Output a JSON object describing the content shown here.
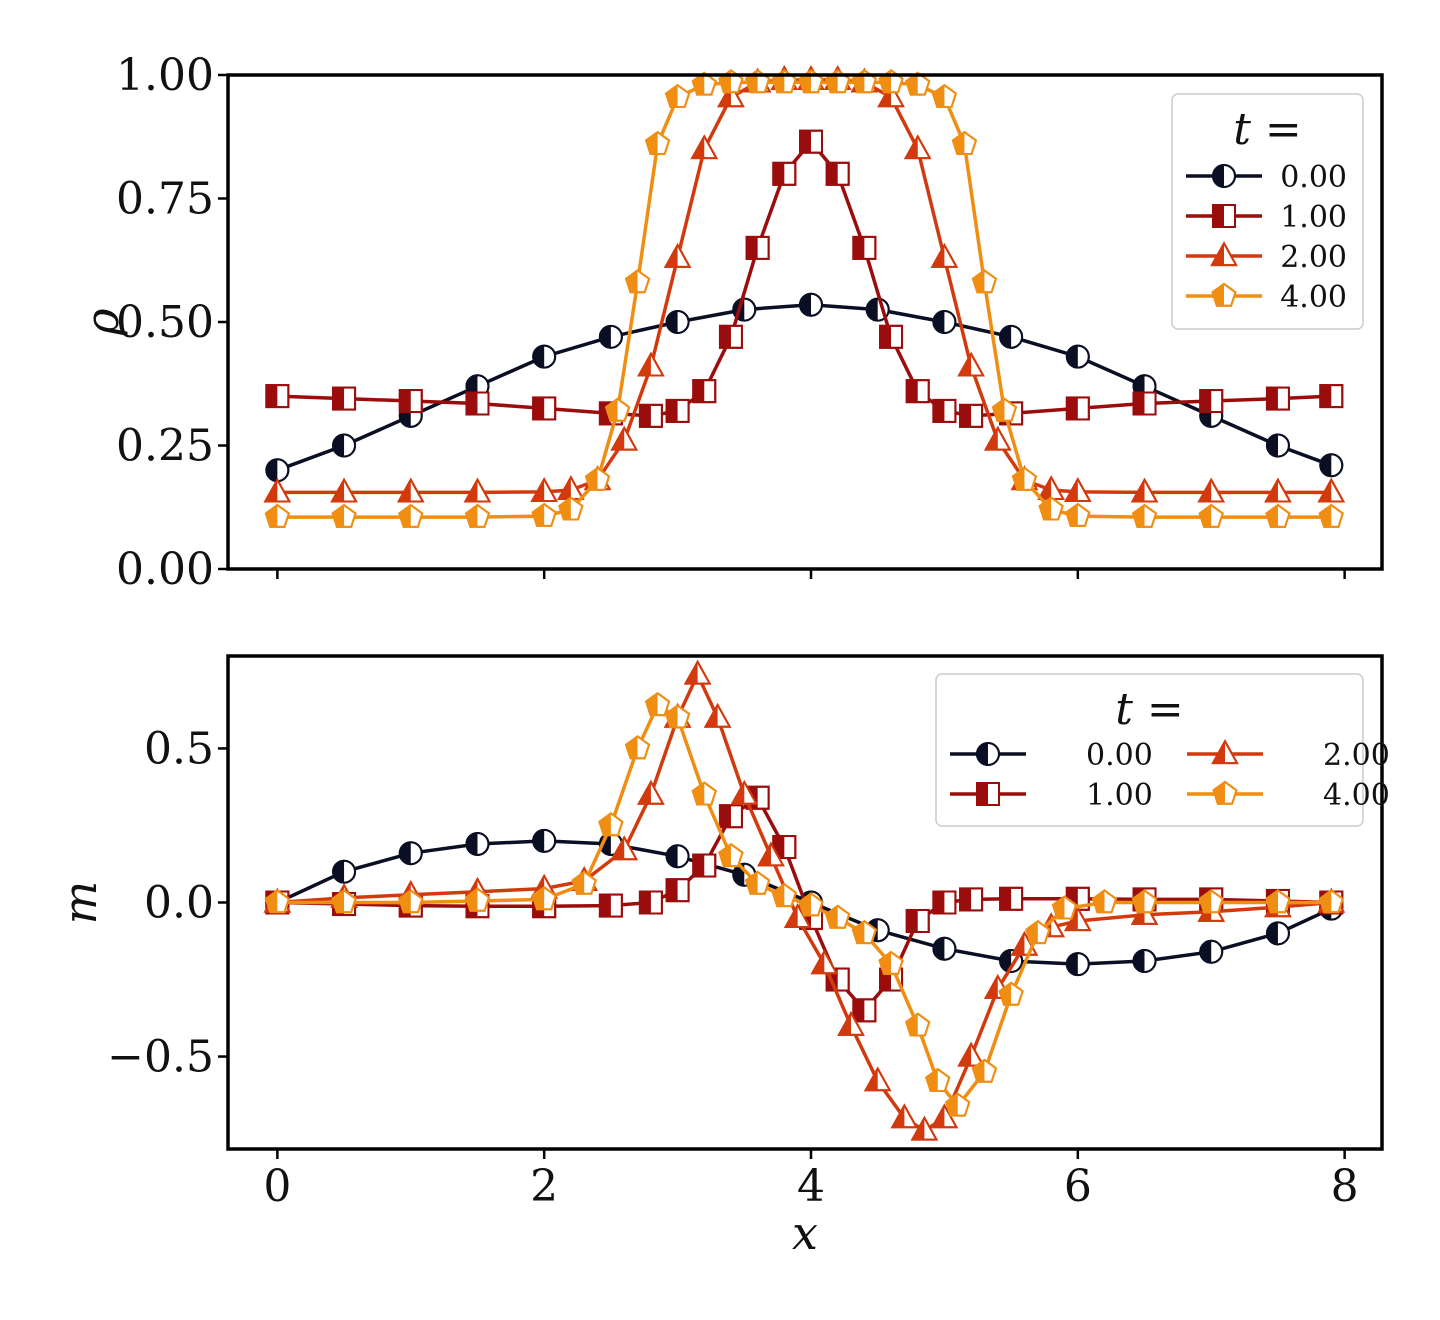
{
  "chart_data": [
    {
      "type": "line",
      "panel": "top",
      "title": "",
      "xlabel": "",
      "ylabel": "ρ",
      "xlim": [
        -0.37,
        8.28
      ],
      "ylim": [
        0.0,
        1.0
      ],
      "x_ticks": [
        "0",
        "2",
        "4",
        "6",
        "8"
      ],
      "y_ticks": [
        "0.00",
        "0.25",
        "0.50",
        "0.75",
        "1.00"
      ],
      "y_tick_values": [
        0.0,
        0.25,
        0.5,
        0.75,
        1.0
      ],
      "show_x_tick_labels": false,
      "legend": {
        "title": "t =",
        "placement": "top-right",
        "columns": 1
      },
      "series": [
        {
          "name": "0.00",
          "color": "#0b0f24",
          "marker": "circle-half",
          "x": [
            0,
            0.5,
            1,
            1.5,
            2,
            2.5,
            3,
            3.5,
            4,
            4.5,
            5,
            5.5,
            6,
            6.5,
            7,
            7.5,
            7.9
          ],
          "y": [
            0.2,
            0.25,
            0.31,
            0.37,
            0.43,
            0.47,
            0.5,
            0.525,
            0.535,
            0.525,
            0.5,
            0.47,
            0.43,
            0.37,
            0.31,
            0.25,
            0.21
          ]
        },
        {
          "name": "1.00",
          "color": "#9b0d0d",
          "marker": "square-half",
          "x": [
            0,
            0.5,
            1,
            1.5,
            2,
            2.5,
            2.8,
            3.0,
            3.2,
            3.4,
            3.6,
            3.8,
            4.0,
            4.2,
            4.4,
            4.6,
            4.8,
            5.0,
            5.2,
            5.5,
            6,
            6.5,
            7,
            7.5,
            7.9
          ],
          "y": [
            0.35,
            0.345,
            0.34,
            0.335,
            0.325,
            0.315,
            0.31,
            0.32,
            0.36,
            0.47,
            0.65,
            0.8,
            0.865,
            0.8,
            0.65,
            0.47,
            0.36,
            0.32,
            0.31,
            0.315,
            0.325,
            0.335,
            0.34,
            0.345,
            0.35
          ]
        },
        {
          "name": "2.00",
          "color": "#d23a0e",
          "marker": "triangle-half",
          "x": [
            0,
            0.5,
            1,
            1.5,
            2,
            2.2,
            2.4,
            2.6,
            2.8,
            3.0,
            3.2,
            3.4,
            3.6,
            3.8,
            4.0,
            4.2,
            4.4,
            4.6,
            4.8,
            5.0,
            5.2,
            5.4,
            5.6,
            5.8,
            6,
            6.5,
            7,
            7.5,
            7.9
          ],
          "y": [
            0.155,
            0.155,
            0.155,
            0.155,
            0.156,
            0.16,
            0.18,
            0.26,
            0.41,
            0.63,
            0.85,
            0.955,
            0.985,
            0.99,
            0.99,
            0.99,
            0.985,
            0.955,
            0.85,
            0.63,
            0.41,
            0.26,
            0.18,
            0.16,
            0.156,
            0.155,
            0.155,
            0.155,
            0.155
          ]
        },
        {
          "name": "4.00",
          "color": "#ef8e12",
          "marker": "pentagon-half",
          "x": [
            0,
            0.5,
            1,
            1.5,
            2,
            2.2,
            2.4,
            2.55,
            2.7,
            2.85,
            3.0,
            3.2,
            3.4,
            3.6,
            3.8,
            4.0,
            4.2,
            4.4,
            4.6,
            4.8,
            5.0,
            5.15,
            5.3,
            5.45,
            5.6,
            5.8,
            6,
            6.5,
            7,
            7.5,
            7.9
          ],
          "y": [
            0.105,
            0.105,
            0.105,
            0.105,
            0.107,
            0.12,
            0.18,
            0.32,
            0.58,
            0.86,
            0.955,
            0.98,
            0.985,
            0.985,
            0.985,
            0.985,
            0.985,
            0.985,
            0.985,
            0.98,
            0.955,
            0.86,
            0.58,
            0.32,
            0.18,
            0.12,
            0.107,
            0.105,
            0.105,
            0.105,
            0.105
          ]
        }
      ]
    },
    {
      "type": "line",
      "panel": "bottom",
      "title": "",
      "xlabel": "x",
      "ylabel": "m",
      "xlim": [
        -0.37,
        8.28
      ],
      "ylim": [
        -0.8,
        0.8
      ],
      "x_ticks": [
        "0",
        "2",
        "4",
        "6",
        "8"
      ],
      "x_tick_values": [
        0,
        2,
        4,
        6,
        8
      ],
      "y_ticks": [
        "−0.5",
        "0.0",
        "0.5"
      ],
      "y_tick_values": [
        -0.5,
        0.0,
        0.5
      ],
      "legend": {
        "title": "t =",
        "placement": "top-right",
        "columns": 2
      },
      "series": [
        {
          "name": "0.00",
          "color": "#0b0f24",
          "marker": "circle-half",
          "x": [
            0,
            0.5,
            1,
            1.5,
            2,
            2.5,
            3,
            3.5,
            4,
            4.5,
            5,
            5.5,
            6,
            6.5,
            7,
            7.5,
            7.9
          ],
          "y": [
            0.0,
            0.1,
            0.16,
            0.19,
            0.2,
            0.19,
            0.15,
            0.09,
            0.0,
            -0.09,
            -0.15,
            -0.19,
            -0.2,
            -0.19,
            -0.16,
            -0.1,
            -0.02
          ]
        },
        {
          "name": "1.00",
          "color": "#9b0d0d",
          "marker": "square-half",
          "x": [
            0,
            0.5,
            1,
            1.5,
            2,
            2.5,
            2.8,
            3.0,
            3.2,
            3.4,
            3.6,
            3.8,
            4.0,
            4.2,
            4.4,
            4.6,
            4.8,
            5.0,
            5.2,
            5.5,
            6,
            6.5,
            7,
            7.5,
            7.9
          ],
          "y": [
            0.0,
            -0.005,
            -0.01,
            -0.012,
            -0.012,
            -0.01,
            0.0,
            0.04,
            0.12,
            0.28,
            0.34,
            0.18,
            -0.05,
            -0.25,
            -0.35,
            -0.25,
            -0.06,
            0.0,
            0.01,
            0.012,
            0.012,
            0.01,
            0.01,
            0.005,
            0.0
          ]
        },
        {
          "name": "2.00",
          "color": "#d23a0e",
          "marker": "triangle-half",
          "x": [
            0,
            0.5,
            1,
            1.5,
            2,
            2.3,
            2.6,
            2.8,
            3.0,
            3.15,
            3.3,
            3.5,
            3.7,
            3.9,
            4.1,
            4.3,
            4.5,
            4.7,
            4.85,
            5.0,
            5.2,
            5.4,
            5.6,
            5.8,
            6,
            6.5,
            7,
            7.5,
            7.9
          ],
          "y": [
            0.0,
            0.015,
            0.025,
            0.035,
            0.045,
            0.07,
            0.17,
            0.35,
            0.6,
            0.74,
            0.6,
            0.35,
            0.15,
            -0.05,
            -0.2,
            -0.4,
            -0.58,
            -0.7,
            -0.74,
            -0.7,
            -0.5,
            -0.28,
            -0.14,
            -0.08,
            -0.06,
            -0.04,
            -0.03,
            -0.015,
            0.0
          ]
        },
        {
          "name": "4.00",
          "color": "#ef8e12",
          "marker": "pentagon-half",
          "x": [
            0,
            0.5,
            1,
            1.5,
            2,
            2.3,
            2.5,
            2.7,
            2.85,
            3.0,
            3.2,
            3.4,
            3.6,
            3.8,
            4.0,
            4.2,
            4.4,
            4.6,
            4.8,
            4.95,
            5.1,
            5.3,
            5.5,
            5.7,
            5.9,
            6.2,
            6.5,
            7,
            7.5,
            7.9
          ],
          "y": [
            0.0,
            0.0,
            0.0,
            0.005,
            0.01,
            0.06,
            0.25,
            0.5,
            0.64,
            0.6,
            0.35,
            0.15,
            0.06,
            0.02,
            -0.01,
            -0.05,
            -0.1,
            -0.2,
            -0.4,
            -0.58,
            -0.66,
            -0.55,
            -0.3,
            -0.1,
            -0.02,
            0.0,
            0.0,
            0.0,
            0.0,
            0.0
          ]
        }
      ]
    }
  ]
}
